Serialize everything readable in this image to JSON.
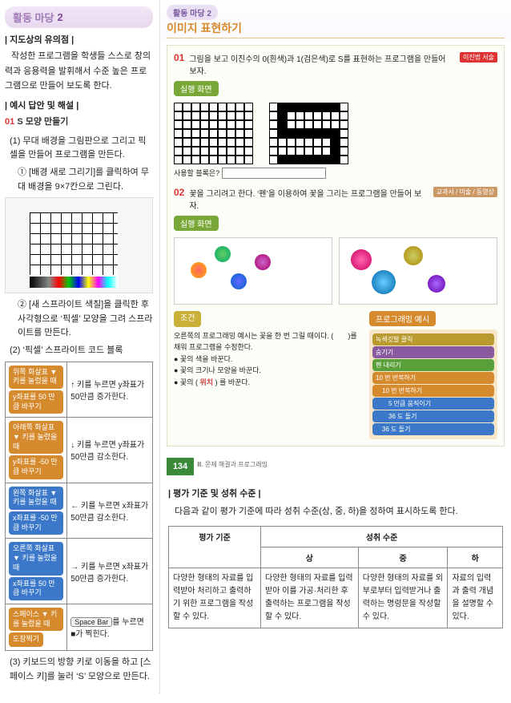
{
  "left": {
    "madang": {
      "label": "활동 마당",
      "num": "2"
    },
    "guide_h": "| 지도상의 유의점 |",
    "guide_txt": "작성한 프로그램을 학생들 스스로 창의력과 응용력을 발휘해서 수준 높은 프로그램으로 만들어 보도록 한다.",
    "ans_h": "| 예시 답안 및 해설 |",
    "s_num": "01",
    "s_title": "S 모양 만들기",
    "s1": "(1) 무대 배경을 그림판으로 그리고 픽셀을 만들어 프로그램을 만든다.",
    "s1a": "① [배경 새로 그리기]를 클릭하여 무대 배경을 9×7칸으로 그린다.",
    "s1b": "② [새 스프라이트 색칠]을 클릭한 후 사각형으로 ‘픽셀’ 모양을 그려 스프라이트를 만든다.",
    "s2": "(2) ‘픽셀’ 스프라이트 코드 블록",
    "s3": "(3) 키보드의 방향 키로 이동을 하고 [스페이스 키]를 눌러 ‘S’ 모양으로 만든다.",
    "rows": [
      {
        "blk1": "위쪽 화살표 ▼ 키를 눌렀을 때",
        "blk2": "y좌표를 50 만큼 바꾸기",
        "c": "b-orange",
        "desc": "↑ 키를 누르면 y좌표가 50만큼 증가한다."
      },
      {
        "blk1": "아래쪽 화살표 ▼ 키를 눌렀을 때",
        "blk2": "y좌표를 -50 만큼 바꾸기",
        "c": "b-orange",
        "desc": "↓ 키를 누르면 y좌표가 50만큼 감소한다."
      },
      {
        "blk1": "왼쪽 화살표 ▼ 키를 눌렀을 때",
        "blk2": "x좌표를 -50 만큼 바꾸기",
        "c": "b-blue",
        "desc": "← 키를 누르면 x좌표가 50만큼 감소한다."
      },
      {
        "blk1": "오른쪽 화살표 ▼ 키를 눌렀을 때",
        "blk2": "x좌표를 50 만큼 바꾸기",
        "c": "b-blue",
        "desc": "→ 키를 누르면 x좌표가 50만큼 증가한다."
      },
      {
        "blk1": "스페이스 ▼ 키를 눌렀을 때",
        "blk2": "도장찍기",
        "c": "b-orange",
        "desc_pre": "",
        "desc_key": "Space Bar",
        "desc_post": "를 누르면 ■가 찍힌다."
      }
    ]
  },
  "right": {
    "madang_chip": "활동 마당 2",
    "title": "이미지 표현하기",
    "q1_num": "01",
    "q1_txt": "그림을 보고 이진수의 0(흰색)과 1(검은색)로 S를 표현하는 프로그램을 만들어 보자.",
    "badge": "이진법 서술",
    "sil": "실행 화면",
    "used_lbl": "사용할 블록은?",
    "q2_num": "02",
    "q2_txt": "꽃을 그리려고 한다. ‘펜’을 이용하여 꽃을 그리는 프로그램을 만들어 보자.",
    "q2_badge": "교과서 / 미술 / 동영상",
    "cond_h": "조건",
    "cond_lines": [
      "오른쪽의 프로그래밍 예시는 꽃을 한 번 그릴 때이다. (　　)를 채워 프로그램을 수정한다.",
      "● 꽃의 색을 바꾼다.",
      "● 꽃의 크기나 모양을 바꾼다.",
      "● 꽃의 ( 위치 ) 를 바꾼다."
    ],
    "ex_h": "프로그래밍 예시",
    "scratch": [
      "녹색깃발 클릭",
      "숨기기",
      "펜 내리기",
      "10 번 반복하기",
      "　10 번 반복하기",
      "　　5 만큼 움직이기",
      "　　36 도 돌기",
      "　36 도 돌기"
    ],
    "pg": "134",
    "pg_cap": "Ⅲ. 문제 해결과 프로그래밍"
  },
  "eval": {
    "h": "| 평가 기준 및 성취 수준 |",
    "p": "다음과 같이 평가 기준에 따라 성취 수준(상, 중, 하)을 정하여 표시하도록 한다.",
    "th_crit": "평가 기준",
    "th_lvl": "성취 수준",
    "lv": [
      "상",
      "중",
      "하"
    ],
    "rows": [
      [
        "다양한 형태의 자료를 입력받아 처리하고 출력하기 위한 프로그램을 작성할 수 있다.",
        "다양한 형태의 자료를 입력받아 이를 가공·처리한 후 출력하는 프로그램을 작성할 수 있다.",
        "다양한 형태의 자료를 외부로부터 입력받거나 출력하는 명령문을 작성할 수 있다.",
        "자료의 입력과 출력 개념을 설명할 수 있다."
      ]
    ]
  }
}
